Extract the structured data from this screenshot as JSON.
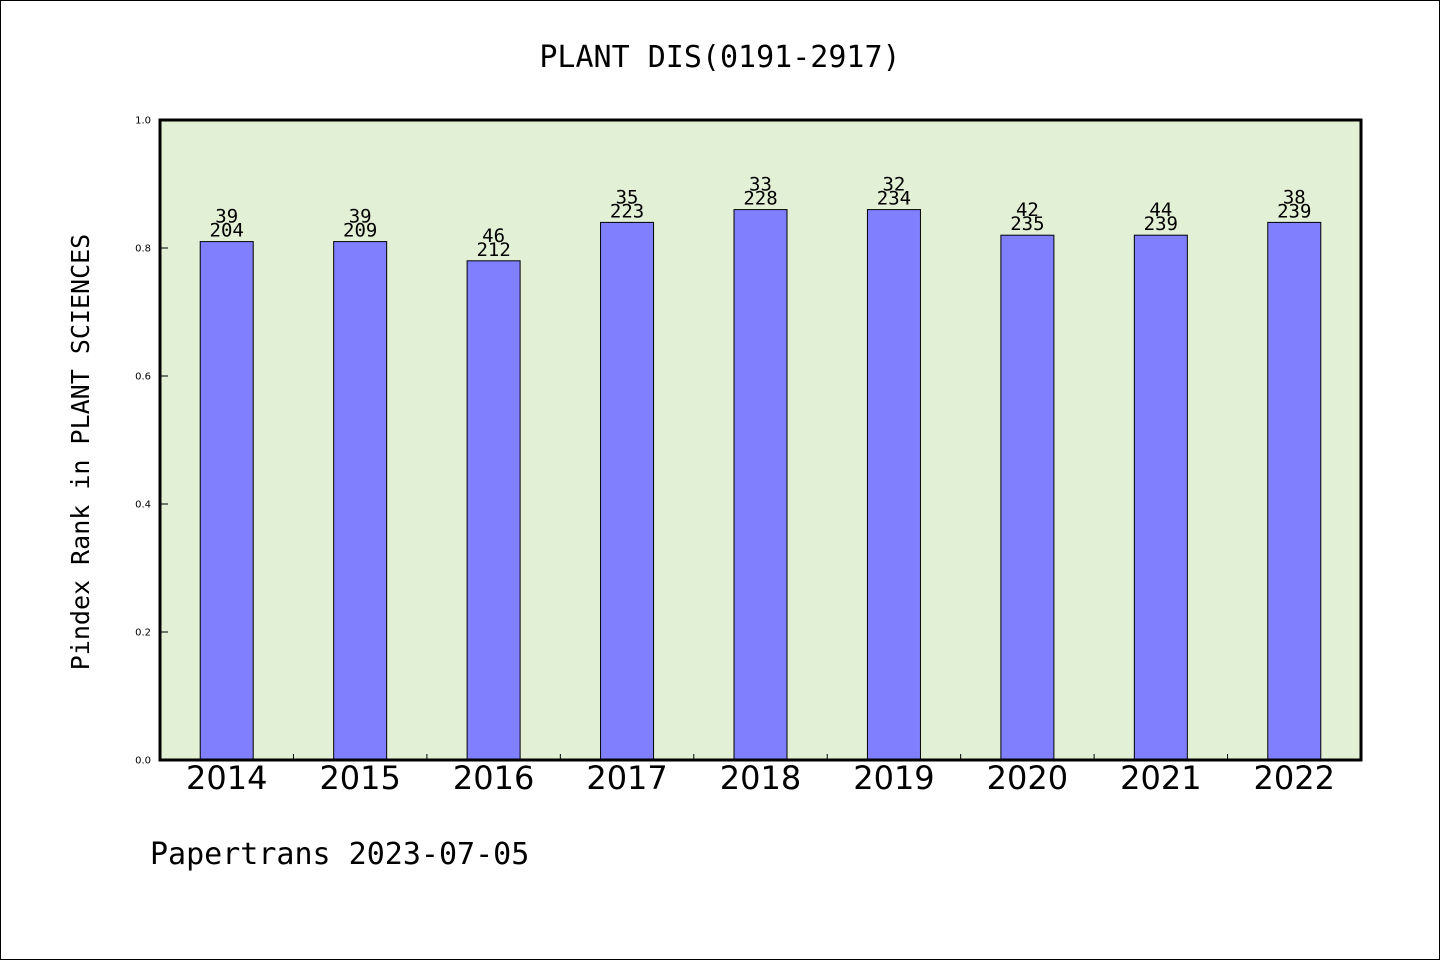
{
  "chart_data": {
    "type": "bar",
    "title": "PLANT DIS(0191-2917)",
    "ylabel": "Pindex Rank in PLANT SCIENCES",
    "xlabel": "",
    "categories": [
      "2014",
      "2015",
      "2016",
      "2017",
      "2018",
      "2019",
      "2020",
      "2021",
      "2022"
    ],
    "values": [
      0.81,
      0.81,
      0.78,
      0.84,
      0.86,
      0.86,
      0.82,
      0.82,
      0.84
    ],
    "rank_labels": [
      "39",
      "39",
      "46",
      "35",
      "33",
      "32",
      "42",
      "44",
      "38"
    ],
    "total_labels": [
      "204",
      "209",
      "212",
      "223",
      "228",
      "234",
      "235",
      "239",
      "239"
    ],
    "ylim": [
      0,
      1
    ],
    "yticks": [
      "0.0",
      "0.2",
      "0.4",
      "0.6",
      "0.8",
      "1.0"
    ],
    "grid": false,
    "colors": {
      "bar": "#8080ff",
      "plot_background": "#e2f0d6",
      "axis": "#000000"
    }
  },
  "footer": {
    "text": "Papertrans 2023-07-05"
  }
}
